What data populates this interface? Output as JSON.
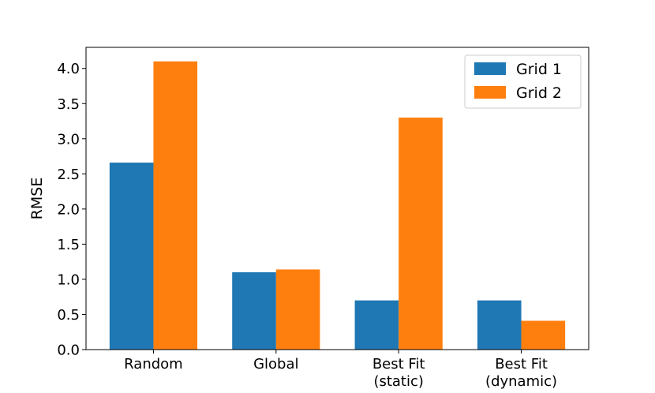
{
  "chart_data": {
    "type": "bar",
    "title": "",
    "xlabel": "",
    "ylabel": "RMSE",
    "categories": [
      [
        "Random"
      ],
      [
        "Global"
      ],
      [
        "Best Fit",
        "(static)"
      ],
      [
        "Best Fit",
        "(dynamic)"
      ]
    ],
    "series": [
      {
        "name": "Grid 1",
        "color": "#1f77b4",
        "values": [
          2.66,
          1.1,
          0.7,
          0.7
        ]
      },
      {
        "name": "Grid 2",
        "color": "#ff7f0e",
        "values": [
          4.1,
          1.14,
          3.3,
          0.41
        ]
      }
    ],
    "ylim": [
      0,
      4.3
    ],
    "yticks": [
      "0.0",
      "0.5",
      "1.0",
      "1.5",
      "2.0",
      "2.5",
      "3.0",
      "3.5",
      "4.0"
    ],
    "grid": false,
    "legend_position": "top-right"
  }
}
